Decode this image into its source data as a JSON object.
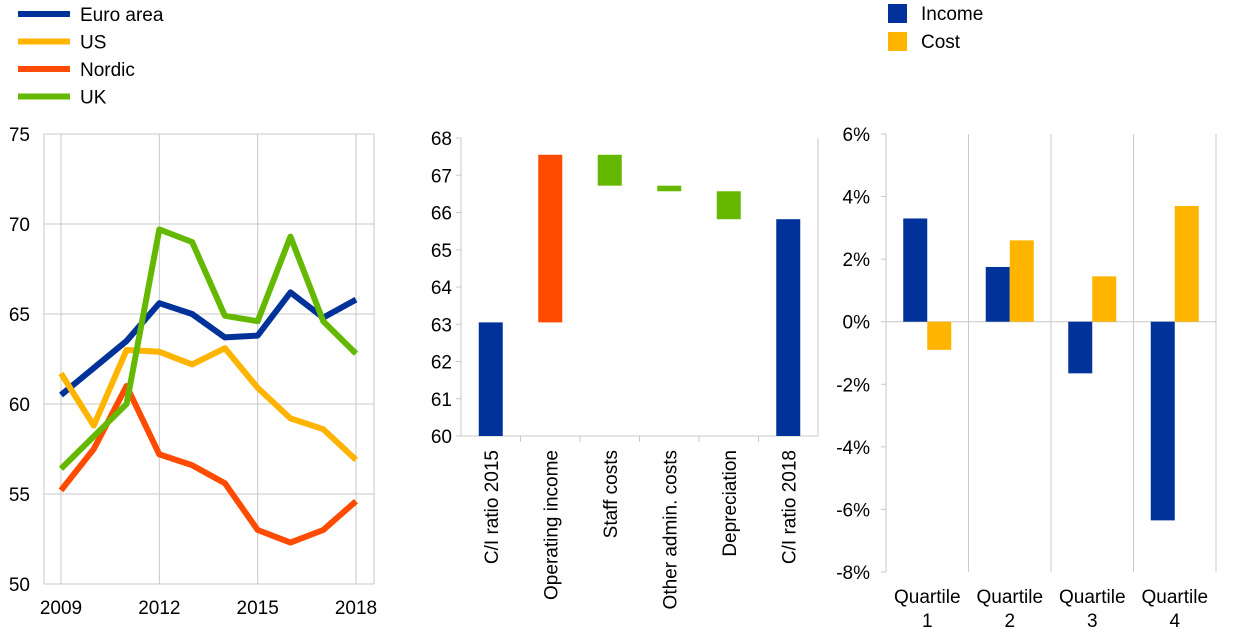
{
  "chart_data": [
    {
      "type": "line",
      "x": [
        2009,
        2010,
        2011,
        2012,
        2013,
        2014,
        2015,
        2016,
        2017,
        2018
      ],
      "x_ticks": [
        "2009",
        "2012",
        "2015",
        "2018"
      ],
      "ylim": [
        50,
        75
      ],
      "y_ticks": [
        "50",
        "55",
        "60",
        "65",
        "70",
        "75"
      ],
      "legend_position": "top-left",
      "series": [
        {
          "name": "Euro area",
          "color": "#003299",
          "values": [
            60.5,
            62.0,
            63.5,
            65.6,
            65.0,
            63.7,
            63.8,
            66.2,
            64.8,
            65.8
          ]
        },
        {
          "name": "US",
          "color": "#ffb400",
          "values": [
            61.7,
            58.8,
            63.0,
            62.9,
            62.2,
            63.1,
            60.9,
            59.2,
            58.6,
            56.9
          ]
        },
        {
          "name": "Nordic",
          "color": "#ff4b00",
          "values": [
            55.2,
            57.5,
            61.0,
            57.2,
            56.6,
            55.6,
            53.0,
            52.3,
            53.0,
            54.6
          ]
        },
        {
          "name": "UK",
          "color": "#65b800",
          "values": [
            56.4,
            58.2,
            60.0,
            69.7,
            69.0,
            64.9,
            64.6,
            69.3,
            64.6,
            62.8
          ]
        }
      ]
    },
    {
      "type": "bar",
      "subtype": "waterfall",
      "categories": [
        "C/I ratio 2015",
        "Operating income",
        "Staff costs",
        "Other admin. costs",
        "Depreciation",
        "C/I ratio 2018"
      ],
      "ylim": [
        60,
        68
      ],
      "y_ticks": [
        "60",
        "61",
        "62",
        "63",
        "64",
        "65",
        "66",
        "67",
        "68"
      ],
      "bars": [
        {
          "bottom": 60.0,
          "top": 63.05,
          "color": "#003299"
        },
        {
          "bottom": 63.05,
          "top": 67.55,
          "color": "#ff4b00"
        },
        {
          "bottom": 66.72,
          "top": 67.55,
          "color": "#65b800"
        },
        {
          "bottom": 66.57,
          "top": 66.72,
          "color": "#65b800"
        },
        {
          "bottom": 65.82,
          "top": 66.57,
          "color": "#65b800"
        },
        {
          "bottom": 60.0,
          "top": 65.82,
          "color": "#003299"
        }
      ]
    },
    {
      "type": "bar",
      "categories": [
        "Quartile 1",
        "Quartile 2",
        "Quartile 3",
        "Quartile 4"
      ],
      "category_lines": [
        [
          "Quartile",
          "1"
        ],
        [
          "Quartile",
          "2"
        ],
        [
          "Quartile",
          "3"
        ],
        [
          "Quartile",
          "4"
        ]
      ],
      "ylim": [
        -8,
        6
      ],
      "y_ticks": [
        "-8%",
        "-6%",
        "-4%",
        "-2%",
        "0%",
        "2%",
        "4%",
        "6%"
      ],
      "legend_position": "top-left",
      "series": [
        {
          "name": "Income",
          "color": "#003299",
          "values": [
            3.3,
            1.75,
            -1.65,
            -6.35
          ]
        },
        {
          "name": "Cost",
          "color": "#ffb400",
          "values": [
            -0.9,
            2.6,
            1.45,
            3.7
          ]
        }
      ]
    }
  ]
}
